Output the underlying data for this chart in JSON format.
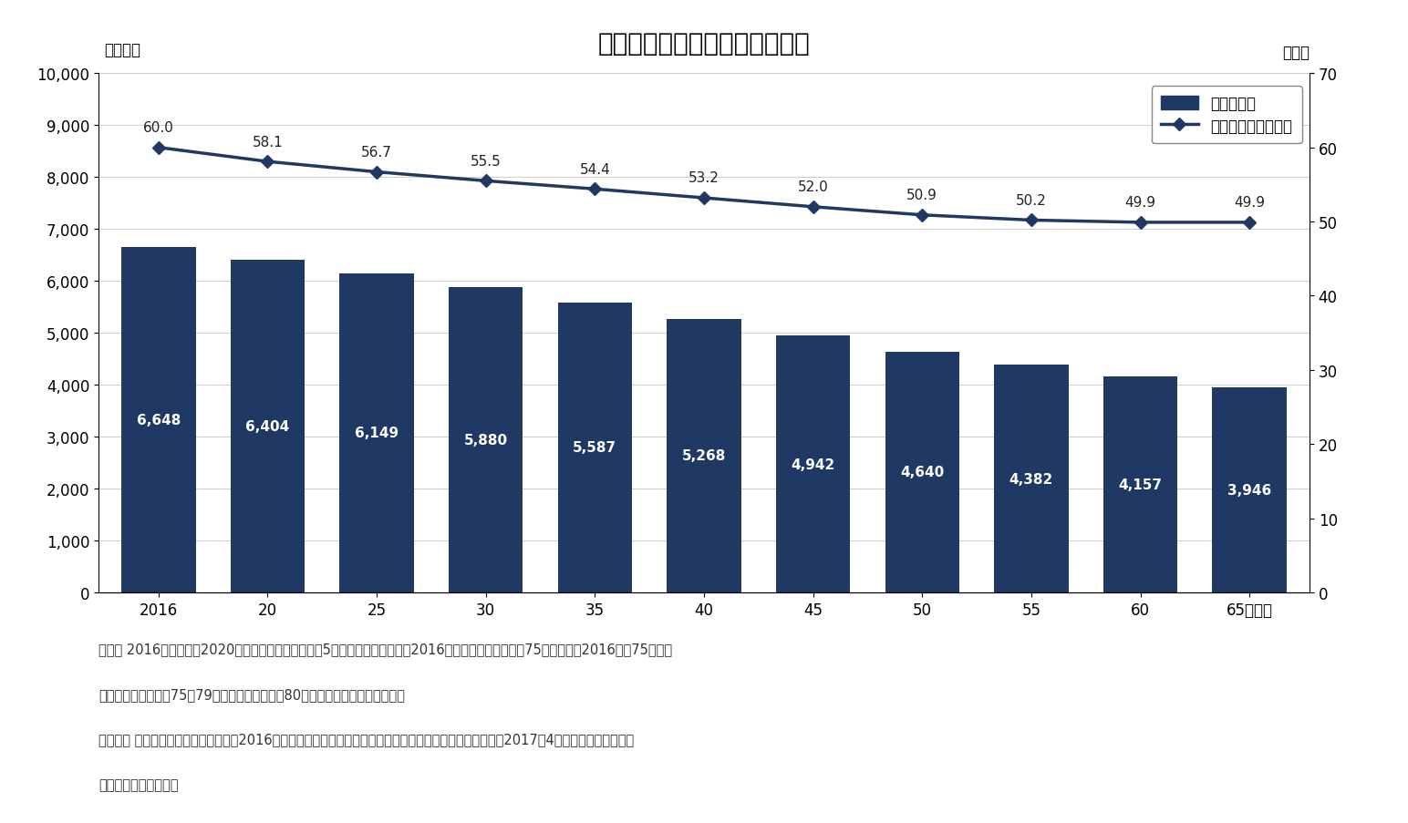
{
  "title": "労働力人口と労働力率の見通し",
  "x_labels": [
    "2016",
    "20",
    "25",
    "30",
    "35",
    "40",
    "45",
    "50",
    "55",
    "60",
    "65（年）"
  ],
  "bar_values": [
    6648,
    6404,
    6149,
    5880,
    5587,
    5268,
    4942,
    4640,
    4382,
    4157,
    3946
  ],
  "line_values": [
    60.0,
    58.1,
    56.7,
    55.5,
    54.4,
    53.2,
    52.0,
    50.9,
    50.2,
    49.9,
    49.9
  ],
  "bar_color": "#1f3864",
  "line_color": "#1f3864",
  "bar_label_color": "#ffffff",
  "left_ylabel": "（万人）",
  "right_ylabel": "（％）",
  "left_ylim": [
    0,
    10000
  ],
  "right_ylim": [
    0,
    70
  ],
  "left_yticks": [
    0,
    1000,
    2000,
    3000,
    4000,
    5000,
    6000,
    7000,
    8000,
    9000,
    10000
  ],
  "right_yticks": [
    0,
    10,
    20,
    30,
    40,
    50,
    60,
    70
  ],
  "legend_bar_label": "労働力人口",
  "legend_line_label": "労働力率（右目盛）",
  "note1": "（注） 2016年は実績。2020年以降は、男女別、年陰5歳階級別の労働力率を2016年と同じとして算出（75歳以上は、2016年の75歳以上",
  "note2": "　　　の労働力率の75～79歳の労働力率とし、80歳以上はゼロとして算出）。",
  "note3": "（資料） 総務省「労働力調査年報」（2016年）、国立社会保障・人口問題研究所「日本の将来推計人口」（2017年4月推計）より、みずほ",
  "note4": "　　　総合研究所作成",
  "background_color": "#ffffff",
  "title_fontsize": 20,
  "label_fontsize": 12,
  "tick_fontsize": 12,
  "bar_label_fontsize": 11,
  "line_label_fontsize": 11,
  "note_fontsize": 10.5,
  "legend_fontsize": 12
}
